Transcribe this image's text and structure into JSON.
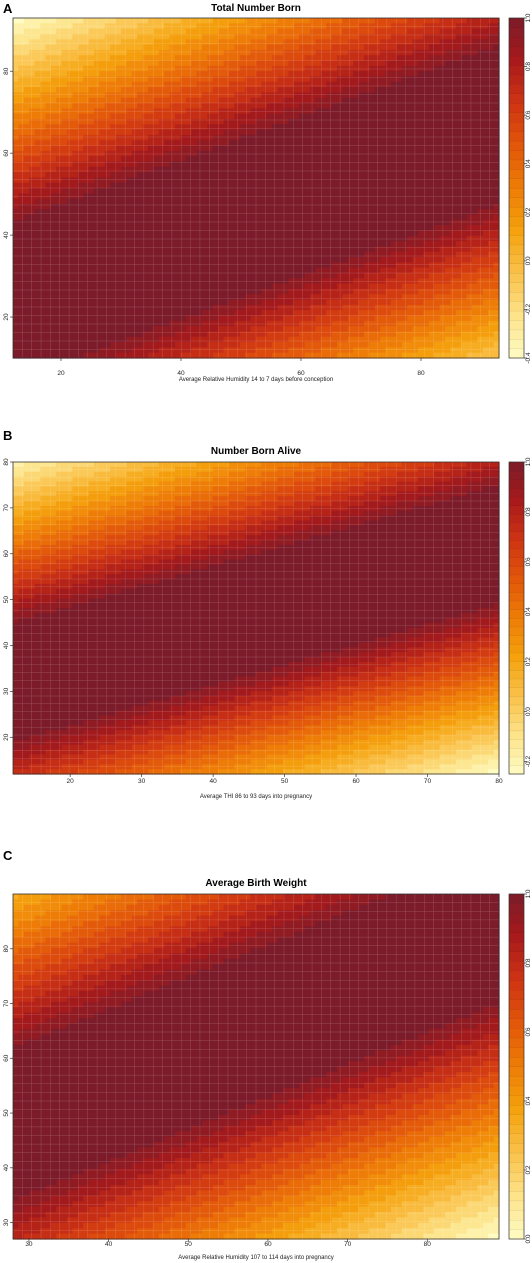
{
  "chart_data": [
    {
      "type": "heatmap",
      "panel": "A",
      "title": "Total Number Born",
      "xlabel": "Average Relative Humidity 14 to 7 days before conception",
      "ylabel": "",
      "xlim": [
        12,
        93
      ],
      "ylim": [
        10,
        93
      ],
      "x_ticks": [
        20,
        40,
        60,
        80
      ],
      "y_ticks": [
        20,
        40,
        60,
        80
      ],
      "colorbar": {
        "range": [
          -0.4,
          1.0
        ],
        "ticks": [
          -0.4,
          -0.2,
          0.0,
          0.2,
          0.4,
          0.6,
          0.8,
          1.0
        ]
      },
      "ridge": {
        "x": [
          12,
          93
        ],
        "y": [
          24,
          67
        ]
      },
      "ridge_halfwidth": 16,
      "low_value_corners": [
        "top-left",
        "bottom-right"
      ]
    },
    {
      "type": "heatmap",
      "panel": "B",
      "title": "Number Born Alive",
      "xlabel": "Average THI 86 to 93 days into pregnancy",
      "ylabel": "",
      "xlim": [
        12,
        80
      ],
      "ylim": [
        12,
        80
      ],
      "x_ticks": [
        20,
        30,
        40,
        50,
        60,
        70,
        80
      ],
      "y_ticks": [
        20,
        30,
        40,
        50,
        60,
        70,
        80
      ],
      "colorbar": {
        "range": [
          -0.25,
          1.0
        ],
        "ticks": [
          -0.2,
          0.0,
          0.2,
          0.4,
          0.6,
          0.8,
          1.0
        ]
      },
      "ridge": {
        "x": [
          12,
          80
        ],
        "y": [
          32,
          62
        ]
      },
      "ridge_halfwidth": 11,
      "low_value_corners": [
        "top-left",
        "bottom-right"
      ]
    },
    {
      "type": "heatmap",
      "panel": "C",
      "title": "Average Birth Weight",
      "xlabel": "Average Relative Humidity 107 to 114 days into pregnancy",
      "ylabel": "",
      "xlim": [
        28,
        89
      ],
      "ylim": [
        27,
        90
      ],
      "x_ticks": [
        30,
        40,
        50,
        60,
        70,
        80
      ],
      "y_ticks": [
        30,
        40,
        50,
        60,
        70,
        80
      ],
      "colorbar": {
        "range": [
          0.0,
          1.0
        ],
        "ticks": [
          0.0,
          0.2,
          0.4,
          0.6,
          0.8,
          1.0
        ]
      },
      "ridge": {
        "x": [
          28,
          89
        ],
        "y": [
          48,
          84
        ]
      },
      "ridge_halfwidth": 11,
      "low_value_corners": [
        "top-left",
        "bottom-right"
      ]
    }
  ],
  "colors": {
    "scale": [
      "#fffcc4",
      "#fde38a",
      "#fac24a",
      "#f5a20e",
      "#ee7d07",
      "#e2570a",
      "#cf3413",
      "#a81a1b",
      "#7c1b2a"
    ],
    "grid": "#ffffff",
    "frame": "#333333"
  }
}
